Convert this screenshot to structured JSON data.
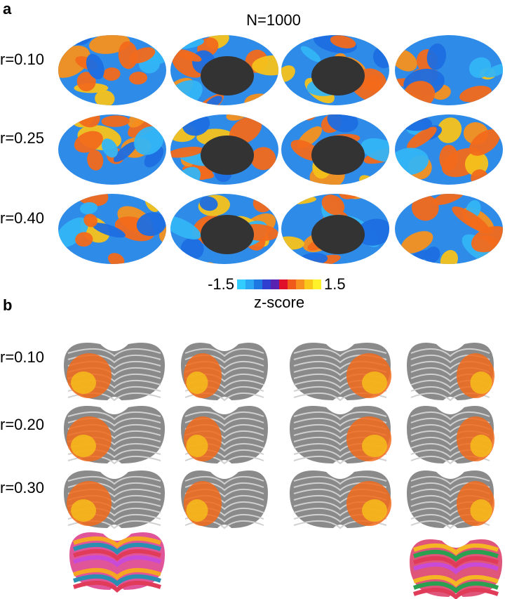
{
  "panel_a": {
    "label": "a",
    "title": "N=1000",
    "rows": [
      "r=0.10",
      "r=0.25",
      "r=0.40"
    ],
    "colorbar": {
      "min": -1.5,
      "max": 1.5,
      "label": "z-score"
    }
  },
  "panel_b": {
    "label": "b",
    "rows": [
      "r=0.10",
      "r=0.20",
      "r=0.30"
    ]
  }
}
